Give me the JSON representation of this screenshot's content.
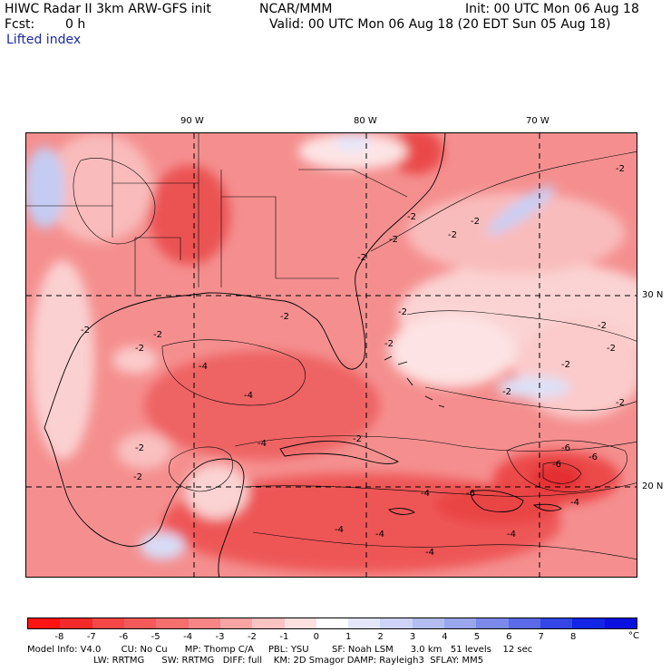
{
  "header": {
    "title": "HIWC Radar II 3km ARW-GFS init",
    "source": "NCAR/MMM",
    "init": "Init: 00 UTC Mon 06 Aug 18",
    "fcst_label": "Fcst:",
    "fcst_value": "0 h",
    "valid": "Valid: 00 UTC Mon 06 Aug 18 (20 EDT Sun 05 Aug 18)",
    "field": "Lifted index"
  },
  "map": {
    "lon_labels": [
      "90 W",
      "80 W",
      "70 W"
    ],
    "lat_labels": [
      "30 N",
      "20 N"
    ],
    "contour_label": "-2",
    "contour_label_strong": "-4",
    "contour_label_peak": "-6",
    "colors": {
      "land_base": "#f58f8f",
      "ocean_deep": "#ee5f5f",
      "light": "#f9c2c2",
      "pale": "#fde3e3",
      "blue_light": "#cdd4f5",
      "dark": "#e8393c"
    }
  },
  "colorbar": {
    "labels": [
      "-8",
      "-7",
      "-6",
      "-5",
      "-4",
      "-3",
      "-2",
      "-1",
      "0",
      "1",
      "2",
      "3",
      "4",
      "5",
      "6",
      "7",
      "8"
    ],
    "unit": "°C",
    "colors": [
      "#ff1313",
      "#f22a2a",
      "#f54747",
      "#f55a5a",
      "#f56f6f",
      "#f88585",
      "#f9a3a3",
      "#fbc2c2",
      "#fde0e0",
      "#ffffff",
      "#e3e6fb",
      "#cdd3f6",
      "#b3bdf2",
      "#9aa6ee",
      "#7b89ea",
      "#5a6ae8",
      "#3446e6",
      "#1326e6",
      "#0a10e0"
    ]
  },
  "footer": {
    "line1": "Model Info: V4.0       CU: No Cu      MP: Thomp C/A     PBL: YSU        SF: Noah LSM      3.0 km   51 levels    12 sec",
    "line2": "                       LW: RRTMG      SW: RRTMG   DIFF: full    KM: 2D Smagor DAMP: Rayleigh3  SFLAY: MM5"
  }
}
